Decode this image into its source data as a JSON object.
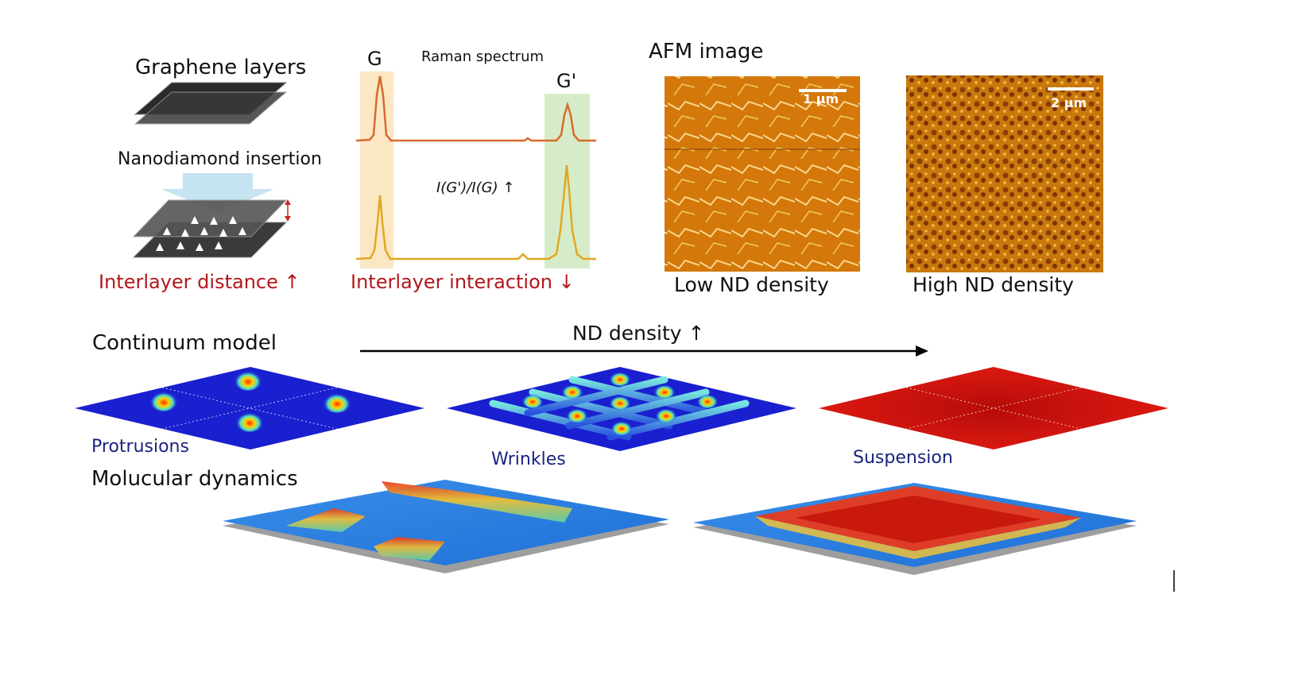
{
  "panel_schematic": {
    "title": "Graphene layers",
    "step_label": "Nanodiamond insertion",
    "result_label": "Interlayer distance ↑"
  },
  "panel_raman": {
    "title": "Raman spectrum",
    "peak_g": "G",
    "peak_g_prime": "G'",
    "ratio_label": "I(G')/I(G) ↑",
    "result_label": "Interlayer interaction ↓",
    "top_curve_color": "#d96a2b",
    "bottom_curve_color": "#e0a820",
    "g_band_color": "#fbe7c4",
    "gprime_band_color": "#d6ecc9"
  },
  "panel_afm": {
    "title": "AFM image",
    "images": [
      {
        "scale": "1 μm",
        "caption": "Low ND density"
      },
      {
        "scale": "2 μm",
        "caption": "High ND density"
      }
    ]
  },
  "continuum": {
    "title": "Continuum model",
    "arrow_label": "ND density ↑",
    "states": [
      "Protrusions",
      "Wrinkles",
      "Suspension"
    ]
  },
  "md": {
    "title": "Molucular dynamics"
  },
  "colors": {
    "accent_red": "#b2181b",
    "label_navy": "#1a237e",
    "surface_blue": "#1a1fd0",
    "surface_red": "#d8120f",
    "afm_orange": "#d4780c"
  }
}
